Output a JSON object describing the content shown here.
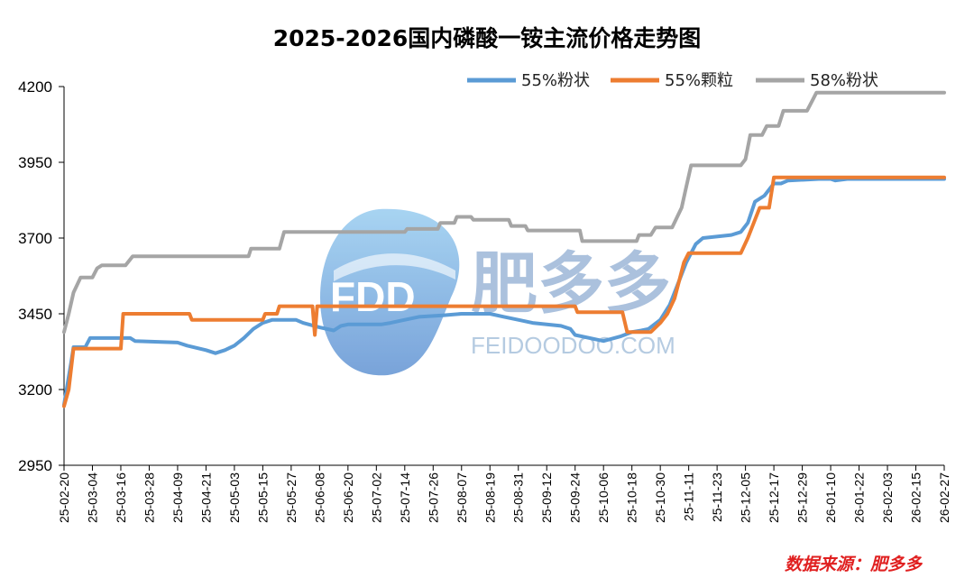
{
  "chart_data": {
    "type": "line",
    "title": "2025-2026国内磷酸一铵主流价格走势图",
    "source": "数据来源：肥多多",
    "ylim": [
      2950,
      4200
    ],
    "yticks": [
      2950,
      3200,
      3450,
      3700,
      3950,
      4200
    ],
    "x_start": "25-02-20",
    "x_end": "26-02-27",
    "xticks": [
      "25-02-20",
      "25-03-04",
      "25-03-16",
      "25-03-28",
      "25-04-09",
      "25-04-21",
      "25-05-03",
      "25-05-15",
      "25-05-27",
      "25-06-08",
      "25-06-20",
      "25-07-02",
      "25-07-14",
      "25-07-26",
      "25-08-07",
      "25-08-19",
      "25-08-31",
      "25-09-12",
      "25-09-24",
      "25-10-06",
      "25-10-18",
      "25-10-30",
      "25-11-11",
      "25-11-23",
      "25-12-05",
      "25-12-17",
      "25-12-29",
      "26-01-10",
      "26-01-22",
      "26-02-03",
      "26-02-15",
      "26-02-27"
    ],
    "legend_position": "top-right",
    "grid": false,
    "series": [
      {
        "name": "55%粉状",
        "color": "#5b9bd5",
        "points": [
          [
            "25-02-20",
            3150
          ],
          [
            "25-02-23",
            3290
          ],
          [
            "25-02-24",
            3340
          ],
          [
            "25-03-01",
            3340
          ],
          [
            "25-03-03",
            3370
          ],
          [
            "25-03-20",
            3370
          ],
          [
            "25-03-22",
            3360
          ],
          [
            "25-04-09",
            3355
          ],
          [
            "25-04-13",
            3345
          ],
          [
            "25-04-21",
            3330
          ],
          [
            "25-04-25",
            3320
          ],
          [
            "25-04-29",
            3330
          ],
          [
            "25-05-03",
            3345
          ],
          [
            "25-05-07",
            3370
          ],
          [
            "25-05-11",
            3400
          ],
          [
            "25-05-15",
            3420
          ],
          [
            "25-05-19",
            3430
          ],
          [
            "25-05-29",
            3430
          ],
          [
            "25-06-01",
            3420
          ],
          [
            "25-06-08",
            3405
          ],
          [
            "25-06-14",
            3395
          ],
          [
            "25-06-17",
            3410
          ],
          [
            "25-06-20",
            3415
          ],
          [
            "25-07-04",
            3415
          ],
          [
            "25-07-08",
            3420
          ],
          [
            "25-07-14",
            3430
          ],
          [
            "25-07-20",
            3440
          ],
          [
            "25-07-30",
            3445
          ],
          [
            "25-08-07",
            3450
          ],
          [
            "25-08-19",
            3450
          ],
          [
            "25-08-25",
            3440
          ],
          [
            "25-08-31",
            3430
          ],
          [
            "25-09-06",
            3420
          ],
          [
            "25-09-12",
            3415
          ],
          [
            "25-09-18",
            3410
          ],
          [
            "25-09-22",
            3400
          ],
          [
            "25-09-24",
            3380
          ],
          [
            "25-10-06",
            3360
          ],
          [
            "25-10-13",
            3375
          ],
          [
            "25-10-18",
            3390
          ],
          [
            "25-10-22",
            3395
          ],
          [
            "25-10-25",
            3400
          ],
          [
            "25-10-30",
            3430
          ],
          [
            "25-11-03",
            3480
          ],
          [
            "25-11-07",
            3560
          ],
          [
            "25-11-10",
            3620
          ],
          [
            "25-11-14",
            3680
          ],
          [
            "25-11-17",
            3700
          ],
          [
            "25-11-29",
            3710
          ],
          [
            "25-12-03",
            3720
          ],
          [
            "25-12-06",
            3750
          ],
          [
            "25-12-09",
            3820
          ],
          [
            "25-12-13",
            3840
          ],
          [
            "25-12-17",
            3880
          ],
          [
            "25-12-20",
            3880
          ],
          [
            "25-12-23",
            3890
          ],
          [
            "26-01-05",
            3895
          ],
          [
            "26-01-10",
            3895
          ],
          [
            "26-01-12",
            3890
          ],
          [
            "26-01-17",
            3895
          ],
          [
            "26-02-27",
            3895
          ]
        ]
      },
      {
        "name": "55%颗粒",
        "color": "#ed7d31",
        "points": [
          [
            "25-02-20",
            3145
          ],
          [
            "25-02-22",
            3200
          ],
          [
            "25-02-24",
            3335
          ],
          [
            "25-03-16",
            3335
          ],
          [
            "25-03-17",
            3450
          ],
          [
            "25-04-14",
            3450
          ],
          [
            "25-04-15",
            3430
          ],
          [
            "25-05-15",
            3430
          ],
          [
            "25-05-16",
            3450
          ],
          [
            "25-05-21",
            3450
          ],
          [
            "25-05-22",
            3475
          ],
          [
            "25-06-05",
            3475
          ],
          [
            "25-06-06",
            3380
          ],
          [
            "25-06-07",
            3475
          ],
          [
            "25-09-24",
            3475
          ],
          [
            "25-09-25",
            3455
          ],
          [
            "25-10-14",
            3455
          ],
          [
            "25-10-16",
            3390
          ],
          [
            "25-10-26",
            3390
          ],
          [
            "25-10-30",
            3420
          ],
          [
            "25-11-02",
            3450
          ],
          [
            "25-11-05",
            3500
          ],
          [
            "25-11-07",
            3560
          ],
          [
            "25-11-09",
            3620
          ],
          [
            "25-11-11",
            3650
          ],
          [
            "25-12-03",
            3650
          ],
          [
            "25-12-06",
            3700
          ],
          [
            "25-12-09",
            3760
          ],
          [
            "25-12-11",
            3800
          ],
          [
            "25-12-15",
            3800
          ],
          [
            "25-12-17",
            3900
          ],
          [
            "26-02-27",
            3900
          ]
        ]
      },
      {
        "name": "58%粉状",
        "color": "#a5a5a5",
        "points": [
          [
            "25-02-20",
            3390
          ],
          [
            "25-02-22",
            3450
          ],
          [
            "25-02-24",
            3520
          ],
          [
            "25-02-27",
            3570
          ],
          [
            "25-03-04",
            3570
          ],
          [
            "25-03-06",
            3600
          ],
          [
            "25-03-08",
            3610
          ],
          [
            "25-03-18",
            3610
          ],
          [
            "25-03-21",
            3640
          ],
          [
            "25-05-09",
            3640
          ],
          [
            "25-05-10",
            3665
          ],
          [
            "25-05-22",
            3665
          ],
          [
            "25-05-24",
            3720
          ],
          [
            "25-07-14",
            3720
          ],
          [
            "25-07-15",
            3730
          ],
          [
            "25-07-28",
            3730
          ],
          [
            "25-07-29",
            3750
          ],
          [
            "25-08-04",
            3750
          ],
          [
            "25-08-05",
            3770
          ],
          [
            "25-08-11",
            3770
          ],
          [
            "25-08-12",
            3760
          ],
          [
            "25-08-27",
            3760
          ],
          [
            "25-08-28",
            3740
          ],
          [
            "25-09-03",
            3740
          ],
          [
            "25-09-04",
            3725
          ],
          [
            "25-09-26",
            3725
          ],
          [
            "25-09-27",
            3690
          ],
          [
            "25-10-20",
            3690
          ],
          [
            "25-10-21",
            3710
          ],
          [
            "25-10-26",
            3710
          ],
          [
            "25-10-28",
            3735
          ],
          [
            "25-11-04",
            3735
          ],
          [
            "25-11-08",
            3800
          ],
          [
            "25-11-10",
            3870
          ],
          [
            "25-11-12",
            3940
          ],
          [
            "25-12-03",
            3940
          ],
          [
            "25-12-05",
            3960
          ],
          [
            "25-12-07",
            4040
          ],
          [
            "25-12-12",
            4040
          ],
          [
            "25-12-14",
            4070
          ],
          [
            "25-12-19",
            4070
          ],
          [
            "25-12-21",
            4120
          ],
          [
            "25-12-31",
            4120
          ],
          [
            "26-01-02",
            4150
          ],
          [
            "26-01-04",
            4180
          ],
          [
            "26-02-27",
            4180
          ]
        ]
      }
    ]
  },
  "watermark": {
    "logo_text": "FDD",
    "brand": "肥多多",
    "url": "FEIDOODOO.COM"
  }
}
